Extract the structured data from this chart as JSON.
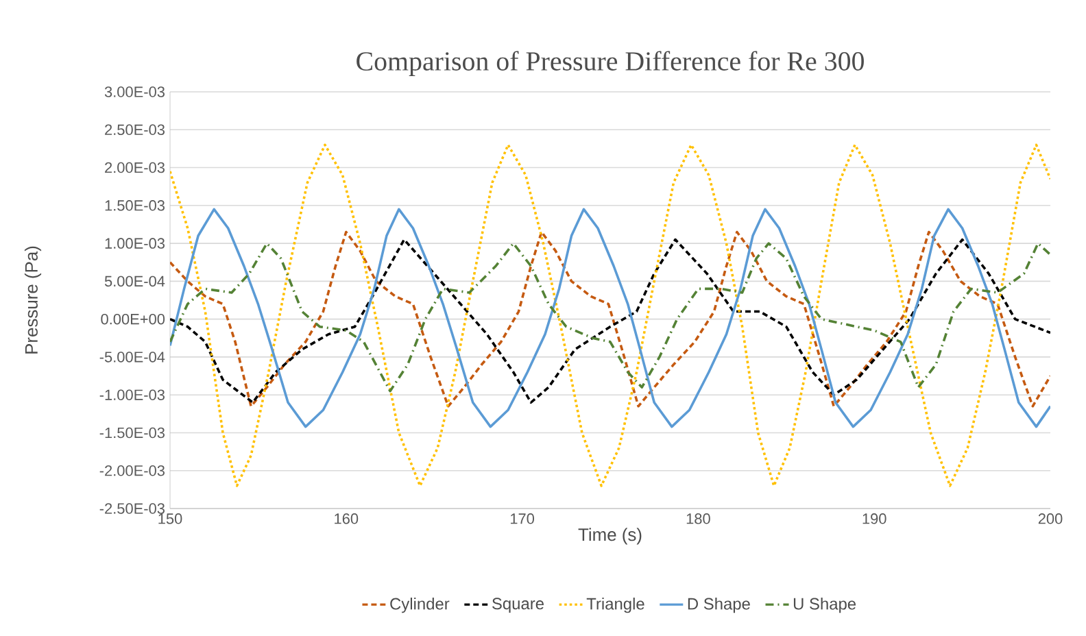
{
  "chart_data": {
    "type": "line",
    "title": "Comparison  of Pressure Difference for Re 300",
    "xlabel": "Time (s)",
    "ylabel": "Pressure (Pa)",
    "xlim": [
      150,
      200
    ],
    "xticks": [
      150,
      160,
      170,
      180,
      190,
      200
    ],
    "ylim": [
      -0.0025,
      0.003
    ],
    "yticks": [
      {
        "value": -0.0025,
        "label": "-2.50E-03"
      },
      {
        "value": -0.002,
        "label": "-2.00E-03"
      },
      {
        "value": -0.0015,
        "label": "-1.50E-03"
      },
      {
        "value": -0.001,
        "label": "-1.00E-03"
      },
      {
        "value": -0.0005,
        "label": "-5.00E-04"
      },
      {
        "value": 0,
        "label": "0.00E+00"
      },
      {
        "value": 0.0005,
        "label": "5.00E-04"
      },
      {
        "value": 0.001,
        "label": "1.00E-03"
      },
      {
        "value": 0.0015,
        "label": "1.50E-03"
      },
      {
        "value": 0.002,
        "label": "2.00E-03"
      },
      {
        "value": 0.0025,
        "label": "2.50E-03"
      },
      {
        "value": 0.003,
        "label": "3.00E-03"
      }
    ],
    "grid": "y",
    "legend": "bottom",
    "marker": "none",
    "series": [
      {
        "name": "Cylinder",
        "color": "#c55a11",
        "line_style": "dashed",
        "x": [
          150,
          151,
          152,
          153,
          153.7,
          154.6,
          155.5,
          156.5,
          157.7,
          158.7,
          159.4,
          160,
          160.8,
          161.7,
          162.8,
          163.8,
          164.8,
          165.8,
          166.7,
          167.7,
          168.8,
          169.8,
          170.5,
          171.1,
          171.9,
          172.8,
          173.9,
          174.9,
          175.8,
          176.6,
          177.5,
          178.6,
          179.8,
          180.9,
          181.6,
          182.2,
          183,
          183.9,
          185,
          186,
          186.9,
          187.7,
          188.6,
          189.6,
          190.7,
          191.8,
          192.5,
          193.1,
          193.9,
          194.9,
          196,
          197,
          198,
          199,
          200
        ],
        "values": [
          0.00075,
          0.0005,
          0.0003,
          0.0002,
          -0.0003,
          -0.00115,
          -0.0009,
          -0.0006,
          -0.0003,
          0.0001,
          0.0007,
          0.00115,
          0.0009,
          0.0005,
          0.0003,
          0.0002,
          -0.0005,
          -0.00115,
          -0.0009,
          -0.0006,
          -0.0003,
          0.0001,
          0.0007,
          0.00115,
          0.0009,
          0.0005,
          0.0003,
          0.0002,
          -0.0005,
          -0.00115,
          -0.0009,
          -0.0006,
          -0.0003,
          0.0001,
          0.0007,
          0.00115,
          0.0009,
          0.0005,
          0.0003,
          0.0002,
          -0.0005,
          -0.00115,
          -0.0009,
          -0.0006,
          -0.0003,
          0.0001,
          0.0007,
          0.00115,
          0.0009,
          0.0005,
          0.0003,
          0.0002,
          -0.0005,
          -0.00115,
          -0.00075
        ]
      },
      {
        "name": "Square",
        "color": "#000000",
        "line_style": "dashed",
        "x": [
          150,
          151,
          152,
          153,
          154.7,
          156,
          157.5,
          159,
          160.5,
          161.5,
          163.3,
          165,
          166.5,
          168,
          169.5,
          170.5,
          171.5,
          173,
          175,
          176.5,
          177.5,
          178.7,
          180.5,
          182,
          183.5,
          185,
          186.5,
          187.7,
          189,
          190.5,
          192,
          193.5,
          195,
          196.5,
          198,
          200
        ],
        "values": [
          0,
          -0.0001,
          -0.0003,
          -0.0008,
          -0.0011,
          -0.0007,
          -0.0004,
          -0.0002,
          -0.0001,
          0.0003,
          0.00105,
          0.0006,
          0.0002,
          -0.0002,
          -0.0007,
          -0.0011,
          -0.0009,
          -0.0004,
          -0.0001,
          0.0001,
          0.0006,
          0.00105,
          0.0006,
          0.0001,
          0.0001,
          -0.0001,
          -0.0007,
          -0.001,
          -0.0008,
          -0.0004,
          0,
          0.0006,
          0.00105,
          0.0006,
          0,
          -0.00018
        ]
      },
      {
        "name": "Triangle",
        "color": "#ffc000",
        "line_style": "dotted",
        "x": [
          150,
          151,
          152,
          153,
          153.8,
          154.6,
          155.6,
          156.6,
          157.8,
          158.8,
          159.8,
          160.8,
          161.8,
          163,
          164.2,
          165.2,
          166.2,
          167.2,
          168.3,
          169.2,
          170.2,
          171.2,
          172.2,
          173.4,
          174.5,
          175.5,
          176.5,
          177.5,
          178.6,
          179.6,
          180.6,
          181.6,
          182.5,
          183.4,
          184.3,
          185.2,
          186.1,
          187,
          188,
          188.9,
          189.9,
          190.9,
          191.9,
          193.2,
          194.3,
          195.3,
          196.3,
          197.3,
          198.3,
          199.2,
          200
        ],
        "values": [
          0.00195,
          0.0012,
          0.0001,
          -0.0015,
          -0.0022,
          -0.0018,
          -0.0007,
          0.0005,
          0.0018,
          0.0023,
          0.0019,
          0.001,
          -0.0001,
          -0.0015,
          -0.0022,
          -0.0017,
          -0.0007,
          0.0005,
          0.0018,
          0.0023,
          0.0019,
          0.001,
          -0.0001,
          -0.0015,
          -0.0022,
          -0.0017,
          -0.0007,
          0.0005,
          0.0018,
          0.0023,
          0.0019,
          0.001,
          -0.0001,
          -0.0015,
          -0.0022,
          -0.0017,
          -0.0007,
          0.0005,
          0.0018,
          0.0023,
          0.0019,
          0.001,
          -0.0001,
          -0.0015,
          -0.0022,
          -0.0017,
          -0.0007,
          0.0005,
          0.0018,
          0.0023,
          0.00185
        ]
      },
      {
        "name": "D Shape",
        "color": "#5b9bd5",
        "line_style": "solid",
        "x": [
          150,
          150.8,
          151.6,
          152.5,
          153.3,
          154.2,
          155,
          155.8,
          156.7,
          157.7,
          158.7,
          159.8,
          160.8,
          161.6,
          162.3,
          163,
          163.8,
          164.7,
          165.5,
          166.3,
          167.2,
          168.2,
          169.2,
          170.3,
          171.3,
          172.1,
          172.8,
          173.5,
          174.3,
          175.2,
          176,
          176.7,
          177.5,
          178.5,
          179.5,
          180.6,
          181.6,
          182.4,
          183.1,
          183.8,
          184.6,
          185.5,
          186.3,
          187,
          187.8,
          188.8,
          189.8,
          190.9,
          191.9,
          192.7,
          193.4,
          194.2,
          195,
          195.9,
          196.7,
          197.4,
          198.2,
          199.2,
          200
        ],
        "values": [
          -0.00035,
          0.0004,
          0.0011,
          0.00145,
          0.0012,
          0.0007,
          0.0002,
          -0.0004,
          -0.0011,
          -0.00142,
          -0.0012,
          -0.0007,
          -0.0002,
          0.0004,
          0.0011,
          0.00145,
          0.0012,
          0.0007,
          0.0002,
          -0.0004,
          -0.0011,
          -0.00142,
          -0.0012,
          -0.0007,
          -0.0002,
          0.0004,
          0.0011,
          0.00145,
          0.0012,
          0.0007,
          0.0002,
          -0.0004,
          -0.0011,
          -0.00142,
          -0.0012,
          -0.0007,
          -0.0002,
          0.0004,
          0.0011,
          0.00145,
          0.0012,
          0.0007,
          0.0002,
          -0.0004,
          -0.0011,
          -0.00142,
          -0.0012,
          -0.0007,
          -0.0002,
          0.0004,
          0.0011,
          0.00145,
          0.0012,
          0.0007,
          0.0002,
          -0.0004,
          -0.0011,
          -0.00142,
          -0.00115
        ]
      },
      {
        "name": "U Shape",
        "color": "#548235",
        "line_style": "dashdot",
        "x": [
          150,
          151,
          152,
          153.5,
          154.5,
          155.5,
          156.3,
          157.5,
          158.5,
          160,
          161,
          162.5,
          163.5,
          164.5,
          165.5,
          167,
          168.5,
          169.5,
          170.5,
          171.5,
          172.5,
          174,
          175,
          176,
          176.8,
          177.8,
          178.8,
          180,
          181.3,
          182.5,
          183.3,
          184,
          185,
          186,
          187,
          189,
          190,
          191.5,
          192.5,
          193.5,
          194.5,
          195.5,
          197,
          198.5,
          199.3,
          200
        ],
        "values": [
          -0.0003,
          0.0002,
          0.0004,
          0.00035,
          0.0006,
          0.001,
          0.0008,
          0.0001,
          -0.0001,
          -0.00015,
          -0.0003,
          -0.00095,
          -0.0006,
          0,
          0.0004,
          0.00035,
          0.0007,
          0.001,
          0.0007,
          0.0002,
          -0.0001,
          -0.00025,
          -0.0003,
          -0.0007,
          -0.0009,
          -0.0005,
          0,
          0.0004,
          0.0004,
          0.00035,
          0.0008,
          0.001,
          0.0008,
          0.0003,
          0,
          -0.0001,
          -0.00015,
          -0.0003,
          -0.0009,
          -0.0006,
          0.0001,
          0.0004,
          0.00035,
          0.0006,
          0.001,
          0.00085
        ]
      }
    ]
  }
}
